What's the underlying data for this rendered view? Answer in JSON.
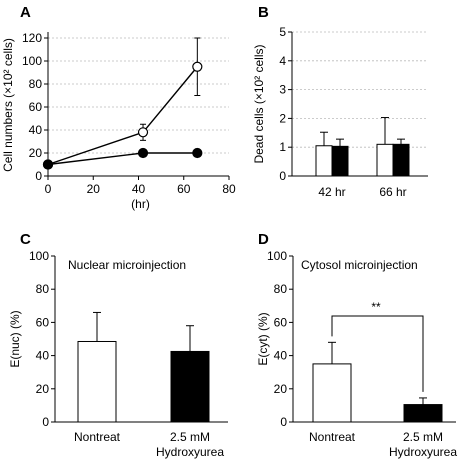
{
  "chart_data": [
    {
      "panel": "A",
      "type": "line",
      "xlabel": "(hr)",
      "ylabel": "Cell numbers (×10² cells)",
      "xlim": [
        0,
        80
      ],
      "ylim": [
        0,
        120
      ],
      "xticks": [
        0,
        20,
        40,
        60,
        80
      ],
      "yticks": [
        0,
        20,
        40,
        60,
        80,
        100,
        120
      ],
      "grid": "horizontal",
      "series": [
        {
          "marker": "open-circle",
          "x": [
            0,
            42,
            66
          ],
          "y": [
            10,
            38,
            95
          ],
          "err": [
            0,
            7,
            25
          ]
        },
        {
          "marker": "filled-circle",
          "x": [
            0,
            42,
            66
          ],
          "y": [
            10,
            20,
            20
          ],
          "err": [
            0,
            0,
            0
          ]
        }
      ]
    },
    {
      "panel": "B",
      "type": "bar",
      "ylabel": "Dead cells (×10² cells)",
      "ylim": [
        0,
        5
      ],
      "yticks": [
        0,
        1,
        2,
        3,
        4,
        5
      ],
      "grid": "horizontal",
      "categories": [
        "42 hr",
        "66 hr"
      ],
      "series": [
        {
          "fill": "white",
          "values": [
            1.05,
            1.1
          ],
          "err": [
            0.47,
            0.93
          ]
        },
        {
          "fill": "black",
          "values": [
            1.03,
            1.1
          ],
          "err": [
            0.25,
            0.18
          ]
        }
      ]
    },
    {
      "panel": "C",
      "type": "bar",
      "title": "Nuclear microinjection",
      "ylabel": "E(nuc) (%)",
      "ylim": [
        0,
        100
      ],
      "yticks": [
        0,
        20,
        40,
        60,
        80,
        100
      ],
      "grid": "none",
      "categories": [
        "Nontreat",
        "2.5 mM|Hydroxyurea"
      ],
      "bars": [
        {
          "fill": "white",
          "value": 48.5,
          "err": 17.5
        },
        {
          "fill": "black",
          "value": 42.5,
          "err": 15.5
        }
      ]
    },
    {
      "panel": "D",
      "type": "bar",
      "title": "Cytosol microinjection",
      "ylabel": "E(cyt) (%)",
      "ylim": [
        0,
        100
      ],
      "yticks": [
        0,
        20,
        40,
        60,
        80,
        100
      ],
      "grid": "none",
      "categories": [
        "Nontreat",
        "2.5 mM|Hydroxyurea"
      ],
      "bars": [
        {
          "fill": "white",
          "value": 35,
          "err": 13
        },
        {
          "fill": "black",
          "value": 10.5,
          "err": 4
        }
      ],
      "significance": "**"
    }
  ]
}
